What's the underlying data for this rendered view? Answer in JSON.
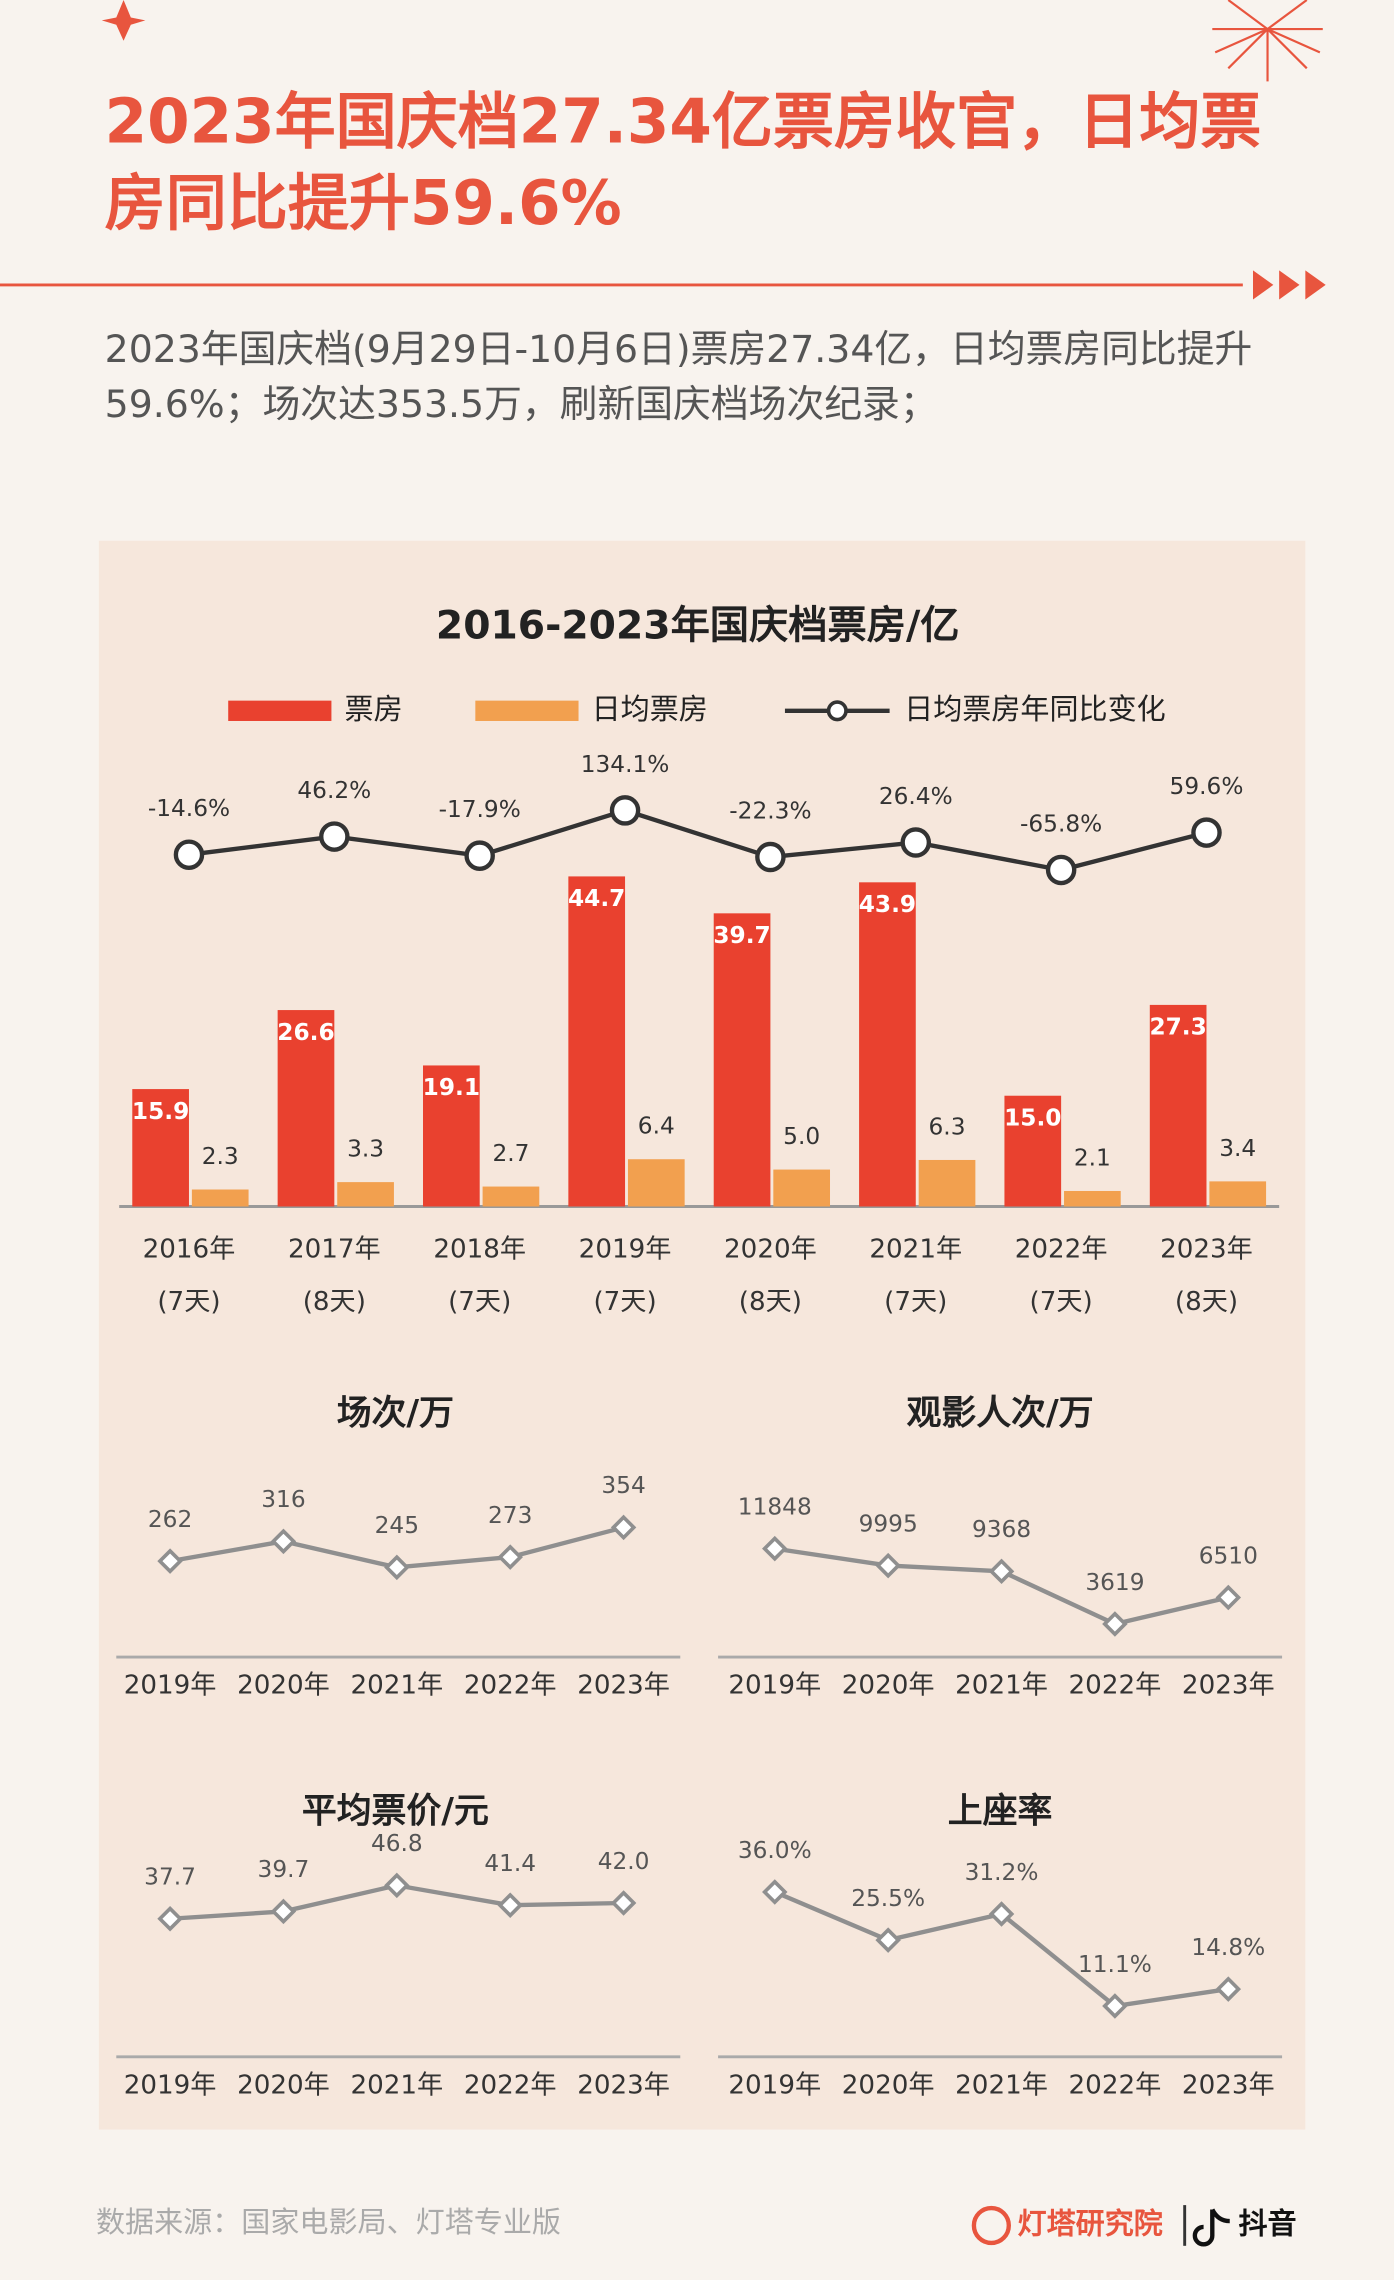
{
  "header": {
    "title": "2023年国庆档27.34亿票房收官，日均票房同比提升59.6%",
    "subtitle": "2023年国庆档(9月29日-10月6日)票房27.34亿，日均票房同比提升59.6%；场次达353.5万，刷新国庆档场次纪录；"
  },
  "chart_data": [
    {
      "type": "bar_line",
      "title": "2016-2023年国庆档票房/亿",
      "categories": [
        [
          "2016年",
          "(7天)"
        ],
        [
          "2017年",
          "(8天)"
        ],
        [
          "2018年",
          "(7天)"
        ],
        [
          "2019年",
          "(7天)"
        ],
        [
          "2020年",
          "(8天)"
        ],
        [
          "2021年",
          "(7天)"
        ],
        [
          "2022年",
          "(7天)"
        ],
        [
          "2023年",
          "(8天)"
        ]
      ],
      "series": [
        {
          "name": "票房",
          "color": "#e9412f",
          "values": [
            15.9,
            26.6,
            19.1,
            44.7,
            39.7,
            43.9,
            15.0,
            27.3
          ],
          "value_labels": [
            "15.9",
            "26.6",
            "19.1",
            "44.7",
            "39.7",
            "43.9",
            "15.0",
            "27.3"
          ]
        },
        {
          "name": "日均票房",
          "color": "#f2a04f",
          "values": [
            2.3,
            3.3,
            2.7,
            6.4,
            5.0,
            6.3,
            2.1,
            3.4
          ],
          "value_labels": [
            "2.3",
            "3.3",
            "2.7",
            "6.4",
            "5.0",
            "6.3",
            "2.1",
            "3.4"
          ]
        },
        {
          "name": "日均票房年同比变化",
          "color": "#333333",
          "type": "line",
          "axis": "y2",
          "values": [
            -14.6,
            46.2,
            -17.9,
            134.1,
            -22.3,
            26.4,
            -65.8,
            59.6
          ],
          "value_labels": [
            "-14.6%",
            "46.2%",
            "-17.9%",
            "134.1%",
            "-22.3%",
            "26.4%",
            "-65.8%",
            "59.6%"
          ]
        }
      ],
      "ylim": [
        0,
        50
      ],
      "y2lim": [
        -200,
        200
      ]
    },
    {
      "type": "line",
      "title": "场次/万",
      "categories": [
        "2019年",
        "2020年",
        "2021年",
        "2022年",
        "2023年"
      ],
      "values": [
        262,
        316,
        245,
        273,
        354
      ],
      "color": "#8f8f8f",
      "ylim": [
        0,
        500
      ]
    },
    {
      "type": "line",
      "title": "观影人次/万",
      "categories": [
        "2019年",
        "2020年",
        "2021年",
        "2022年",
        "2023年"
      ],
      "values": [
        11848,
        9995,
        9368,
        3619,
        6510
      ],
      "color": "#8f8f8f",
      "ylim": [
        0,
        20000
      ]
    },
    {
      "type": "line",
      "title": "平均票价/元",
      "categories": [
        "2019年",
        "2020年",
        "2021年",
        "2022年",
        "2023年"
      ],
      "values": [
        37.7,
        39.7,
        46.8,
        41.4,
        42.0
      ],
      "value_labels": [
        "37.7",
        "39.7",
        "46.8",
        "41.4",
        "42.0"
      ],
      "color": "#8f8f8f",
      "ylim": [
        0,
        50
      ]
    },
    {
      "type": "line",
      "title": "上座率",
      "categories": [
        "2019年",
        "2020年",
        "2021年",
        "2022年",
        "2023年"
      ],
      "values": [
        36.0,
        25.5,
        31.2,
        11.1,
        14.8
      ],
      "value_labels": [
        "36.0%",
        "25.5%",
        "31.2%",
        "11.1%",
        "14.8%"
      ],
      "color": "#8f8f8f",
      "ylim": [
        0,
        40
      ]
    }
  ],
  "footer": {
    "source": "数据来源：国家电影局、灯塔专业版",
    "brands": [
      "灯塔研究院",
      "抖音"
    ]
  }
}
